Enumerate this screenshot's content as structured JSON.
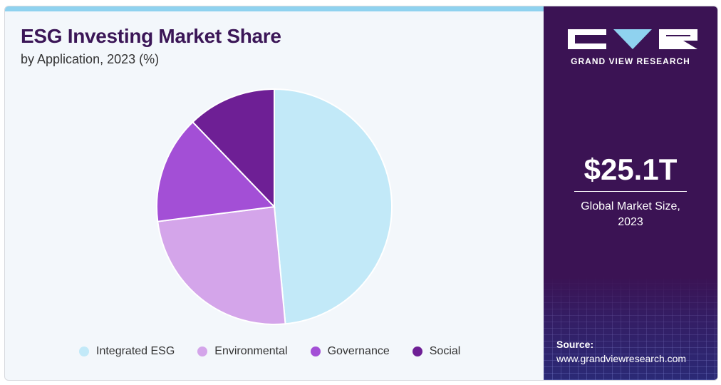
{
  "header": {
    "title": "ESG Investing Market Share",
    "subtitle": "by Application, 2023 (%)"
  },
  "chart_data": {
    "type": "pie",
    "title": "ESG Investing Market Share",
    "subtitle": "by Application, 2023 (%)",
    "categories": [
      "Integrated ESG",
      "Environmental",
      "Governance",
      "Social"
    ],
    "values": [
      48.5,
      24.5,
      14.8,
      12.2
    ],
    "colors": [
      "#c2e9f8",
      "#d4a5ea",
      "#a34fd6",
      "#6e1f95"
    ],
    "legend_position": "bottom"
  },
  "sidebar": {
    "logo_text": "GRAND VIEW RESEARCH",
    "market_size_value": "$25.1T",
    "market_size_label_line1": "Global Market Size,",
    "market_size_label_line2": "2023",
    "source_label": "Source:",
    "source_url": "www.grandviewresearch.com"
  },
  "colors": {
    "title": "#3b1657",
    "sidebar_bg": "#3b1354",
    "accent_bar": "#8fd2ef"
  }
}
